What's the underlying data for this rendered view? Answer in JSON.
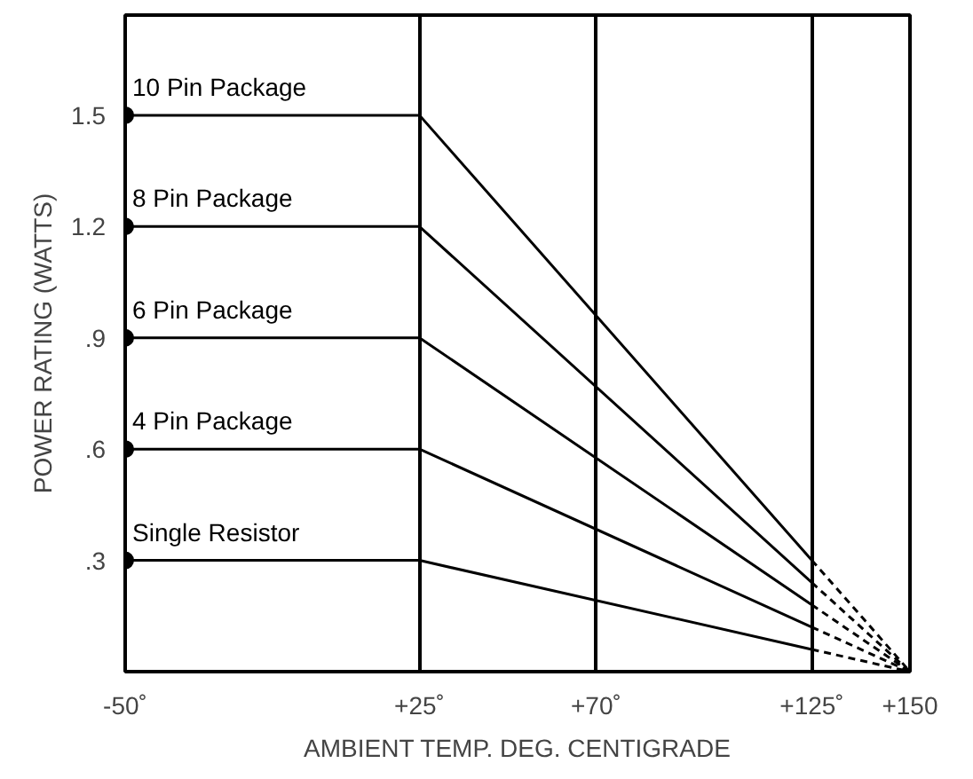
{
  "chart_data": {
    "type": "line",
    "xlabel": "AMBIENT TEMP. DEG. CENTIGRADE",
    "ylabel": "POWER RATING (WATTS)",
    "xlim": [
      -50,
      150
    ],
    "ylim": [
      0,
      1.77
    ],
    "xticks": [
      {
        "value": -50,
        "label": "-50˚"
      },
      {
        "value": 25,
        "label": "+25˚"
      },
      {
        "value": 70,
        "label": "+70˚"
      },
      {
        "value": 125,
        "label": "+125˚"
      },
      {
        "value": 150,
        "label": "+150"
      }
    ],
    "yticks": [
      {
        "value": 0.3,
        "label": ".3"
      },
      {
        "value": 0.6,
        "label": ".6"
      },
      {
        "value": 0.9,
        "label": ".9"
      },
      {
        "value": 1.2,
        "label": "1.2"
      },
      {
        "value": 1.5,
        "label": "1.5"
      }
    ],
    "grid": "x",
    "series": [
      {
        "name": "10 Pin Package",
        "color": "#000000",
        "line_style": "solid",
        "x": [
          -50,
          25,
          125
        ],
        "values": [
          1.5,
          1.5,
          0.3
        ]
      },
      {
        "name": "8 Pin Package",
        "color": "#000000",
        "line_style": "solid",
        "x": [
          -50,
          25,
          125
        ],
        "values": [
          1.2,
          1.2,
          0.24
        ]
      },
      {
        "name": "6 Pin Package",
        "color": "#000000",
        "line_style": "solid",
        "x": [
          -50,
          25,
          125
        ],
        "values": [
          0.9,
          0.9,
          0.18
        ]
      },
      {
        "name": "4 Pin Package",
        "color": "#000000",
        "line_style": "solid",
        "x": [
          -50,
          25,
          125
        ],
        "values": [
          0.6,
          0.6,
          0.12
        ]
      },
      {
        "name": "Single Resistor",
        "color": "#000000",
        "line_style": "solid",
        "x": [
          -50,
          25,
          125
        ],
        "values": [
          0.3,
          0.3,
          0.06
        ]
      },
      {
        "color": "#000000",
        "line_style": "dashed",
        "x": [
          125,
          150
        ],
        "values": [
          0.3,
          0
        ]
      },
      {
        "color": "#000000",
        "line_style": "dashed",
        "x": [
          125,
          150
        ],
        "values": [
          0.24,
          0
        ]
      },
      {
        "color": "#000000",
        "line_style": "dashed",
        "x": [
          125,
          150
        ],
        "values": [
          0.18,
          0
        ]
      },
      {
        "color": "#000000",
        "line_style": "dashed",
        "x": [
          125,
          150
        ],
        "values": [
          0.12,
          0
        ]
      },
      {
        "color": "#000000",
        "line_style": "dashed",
        "x": [
          125,
          150
        ],
        "values": [
          0.06,
          0
        ]
      },
      {
        "type": "scatter",
        "marker": "circle",
        "color": "#000000",
        "x": [
          -50,
          -50,
          -50,
          -50,
          -50
        ],
        "values": [
          1.5,
          1.2,
          0.9,
          0.6,
          0.3
        ]
      }
    ]
  }
}
